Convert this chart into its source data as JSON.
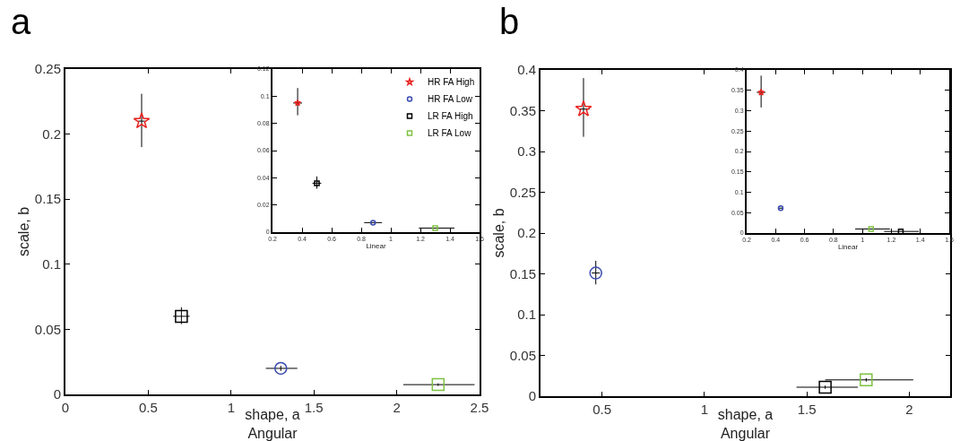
{
  "chart_data": [
    {
      "type": "scatter",
      "title": "a",
      "xlabel": "shape, a\nAngular",
      "ylabel": "scale, b",
      "xlim": [
        0,
        2.5
      ],
      "xticks": [
        0,
        0.5,
        1,
        1.5,
        2,
        2.5
      ],
      "ylim": [
        0,
        0.25
      ],
      "yticks": [
        0,
        0.05,
        0.1,
        0.15,
        0.2,
        0.25
      ],
      "grid": false,
      "legend": false,
      "series": [
        {
          "color": "#e8231f",
          "marker": "star",
          "x": [
            0.46
          ],
          "values": [
            0.21
          ],
          "errors": [
            [
              0.19,
              0.231
            ]
          ],
          "xerrors": [
            [
              0.44,
              0.48
            ]
          ]
        },
        {
          "color": "#3a4bb0",
          "marker": "circle",
          "x": [
            1.3
          ],
          "values": [
            0.02
          ],
          "errors": [
            [
              0.018,
              0.022
            ]
          ],
          "xerrors": [
            [
              1.21,
              1.4
            ]
          ]
        },
        {
          "color": "#000000",
          "marker": "square",
          "x": [
            0.7
          ],
          "values": [
            0.06
          ],
          "errors": [
            [
              0.054,
              0.067
            ]
          ],
          "xerrors": [
            [
              0.65,
              0.75
            ]
          ]
        },
        {
          "color": "#7dc242",
          "marker": "square",
          "x": [
            2.25
          ],
          "values": [
            0.0075
          ],
          "errors": [
            [
              0.0065,
              0.0085
            ]
          ],
          "xerrors": [
            [
              2.04,
              2.47
            ]
          ]
        }
      ]
    },
    {
      "type": "scatter",
      "xlabel": "Linear",
      "xlim": [
        0.2,
        1.6
      ],
      "xticks": [
        0.2,
        0.4,
        0.6,
        0.8,
        1,
        1.2,
        1.4,
        1.6
      ],
      "ylim": [
        0,
        0.12
      ],
      "yticks": [
        0,
        0.02,
        0.04,
        0.06,
        0.08,
        0.1,
        0.12
      ],
      "grid": false,
      "legend": "top right",
      "series": [
        {
          "name": "HR FA High",
          "color": "#e8231f",
          "marker": "star",
          "x": [
            0.37
          ],
          "values": [
            0.095
          ],
          "errors": [
            [
              0.086,
              0.106
            ]
          ],
          "xerrors": [
            [
              0.34,
              0.4
            ]
          ]
        },
        {
          "name": "HR FA Low",
          "color": "#3a4bb0",
          "marker": "circle",
          "x": [
            0.88
          ],
          "values": [
            0.007
          ],
          "xerrors": [
            [
              0.82,
              0.94
            ]
          ]
        },
        {
          "name": "LR FA High",
          "color": "#000000",
          "marker": "square",
          "x": [
            0.5
          ],
          "values": [
            0.036
          ],
          "errors": [
            [
              0.032,
              0.041
            ]
          ],
          "xerrors": [
            [
              0.47,
              0.53
            ]
          ]
        },
        {
          "name": "LR FA Low",
          "color": "#7dc242",
          "marker": "square",
          "x": [
            1.3
          ],
          "values": [
            0.003
          ],
          "xerrors": [
            [
              1.19,
              1.43
            ]
          ]
        }
      ]
    },
    {
      "type": "scatter",
      "title": "b",
      "xlabel": "shape, a\nAngular",
      "ylabel": "scale, b",
      "xlim": [
        0.2,
        2.2
      ],
      "xticks": [
        0.5,
        1,
        1.5,
        2
      ],
      "ylim": [
        0,
        0.4
      ],
      "yticks": [
        0,
        0.05,
        0.1,
        0.15,
        0.2,
        0.25,
        0.3,
        0.35,
        0.4
      ],
      "grid": false,
      "legend": false,
      "series": [
        {
          "color": "#e8231f",
          "marker": "star",
          "x": [
            0.41
          ],
          "values": [
            0.352
          ],
          "errors": [
            [
              0.318,
              0.39
            ]
          ],
          "xerrors": [
            [
              0.39,
              0.44
            ]
          ]
        },
        {
          "color": "#3a4bb0",
          "marker": "circle",
          "x": [
            0.47
          ],
          "values": [
            0.151
          ],
          "errors": [
            [
              0.137,
              0.166
            ]
          ],
          "xerrors": [
            [
              0.45,
              0.49
            ]
          ]
        },
        {
          "color": "#000000",
          "marker": "square",
          "x": [
            1.59
          ],
          "values": [
            0.011
          ],
          "errors": [
            [
              0.009,
              0.013
            ]
          ],
          "xerrors": [
            [
              1.45,
              1.75
            ]
          ]
        },
        {
          "color": "#7dc242",
          "marker": "square",
          "x": [
            1.79
          ],
          "values": [
            0.02
          ],
          "errors": [
            [
              0.018,
              0.022
            ]
          ],
          "xerrors": [
            [
              1.59,
              2.02
            ]
          ]
        }
      ]
    },
    {
      "type": "scatter",
      "xlabel": "Linear",
      "xlim": [
        0.2,
        1.6
      ],
      "xticks": [
        0.2,
        0.4,
        0.6,
        0.8,
        1,
        1.2,
        1.4,
        1.6
      ],
      "ylim": [
        0,
        0.4
      ],
      "yticks": [
        0,
        0.05,
        0.1,
        0.15,
        0.2,
        0.25,
        0.3,
        0.35,
        0.4
      ],
      "grid": false,
      "legend": false,
      "series": [
        {
          "color": "#e8231f",
          "marker": "star",
          "x": [
            0.3
          ],
          "values": [
            0.345
          ],
          "errors": [
            [
              0.308,
              0.386
            ]
          ],
          "xerrors": [
            [
              0.27,
              0.33
            ]
          ]
        },
        {
          "color": "#3a4bb0",
          "marker": "circle",
          "x": [
            0.435
          ],
          "values": [
            0.061
          ],
          "xerrors": [
            [
              0.42,
              0.45
            ]
          ]
        },
        {
          "color": "#000000",
          "marker": "square",
          "x": [
            1.265
          ],
          "values": [
            0.004
          ],
          "xerrors": [
            [
              1.15,
              1.39
            ]
          ]
        },
        {
          "color": "#7dc242",
          "marker": "square",
          "x": [
            1.06
          ],
          "values": [
            0.01
          ],
          "xerrors": [
            [
              0.95,
              1.19
            ]
          ]
        }
      ]
    }
  ]
}
